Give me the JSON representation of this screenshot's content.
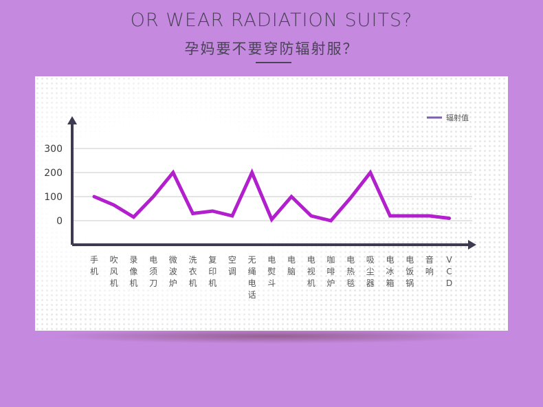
{
  "header": {
    "title_en": "OR WEAR RADIATION SUITS?",
    "title_cn": "孕妈要不要穿防辐射服？"
  },
  "colors": {
    "background": "#c58ae0",
    "line": "#b21fcc",
    "legend_swatch": "#7b5fb0",
    "axis": "#3e3a52",
    "text": "#4a4256"
  },
  "chart_data": {
    "type": "line",
    "title": "",
    "xlabel": "",
    "ylabel": "",
    "ylim": [
      -100,
      300
    ],
    "yticks": [
      0,
      100,
      200,
      300
    ],
    "grid": true,
    "legend_position": "top-right",
    "categories": [
      "手机",
      "吹风机",
      "录像机",
      "电须刀",
      "微波炉",
      "洗衣机",
      "复印机",
      "空调",
      "无绳电话",
      "电熨斗",
      "电脑",
      "电视机",
      "咖啡炉",
      "电热毯",
      "吸尘器",
      "电冰箱",
      "电饭锅",
      "音响",
      "VCD"
    ],
    "series": [
      {
        "name": "辐射值",
        "values": [
          100,
          65,
          15,
          100,
          200,
          30,
          40,
          20,
          200,
          5,
          100,
          20,
          0,
          95,
          200,
          20,
          20,
          20,
          10
        ]
      }
    ]
  }
}
